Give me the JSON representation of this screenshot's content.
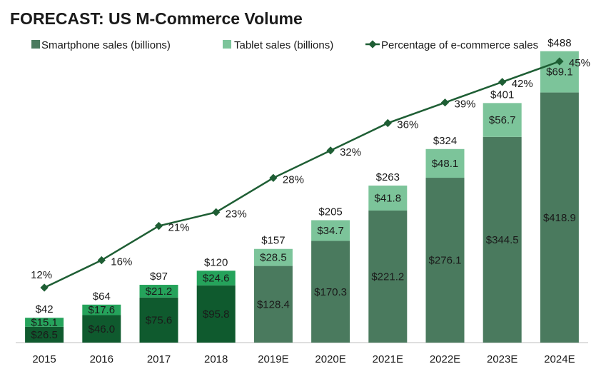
{
  "chart_data": {
    "type": "bar",
    "title": "FORECAST: US M-Commerce Volume",
    "categories": [
      "2015",
      "2016",
      "2017",
      "2018",
      "2019E",
      "2020E",
      "2021E",
      "2022E",
      "2023E",
      "2024E"
    ],
    "series": [
      {
        "name": "Smartphone sales (billions)",
        "values": [
          26.5,
          46.0,
          75.6,
          95.8,
          128.4,
          170.3,
          221.2,
          276.1,
          344.5,
          418.9
        ],
        "labels": [
          "$26.5",
          "$46.0",
          "$75.6",
          "$95.8",
          "$128.4",
          "$170.3",
          "$221.2",
          "$276.1",
          "$344.5",
          "$418.9"
        ]
      },
      {
        "name": "Tablet sales (billions)",
        "values": [
          15.1,
          17.6,
          21.2,
          24.6,
          28.5,
          34.7,
          41.8,
          48.1,
          56.7,
          69.1
        ],
        "labels": [
          "$15.1",
          "$17.6",
          "$21.2",
          "$24.6",
          "$28.5",
          "$34.7",
          "$41.8",
          "$48.1",
          "$56.7",
          "$69.1"
        ]
      },
      {
        "name": "Percentage of e-commerce sales",
        "type": "line",
        "values": [
          12,
          16,
          21,
          23,
          28,
          32,
          36,
          39,
          42,
          45
        ],
        "labels": [
          "12%",
          "16%",
          "21%",
          "23%",
          "28%",
          "32%",
          "36%",
          "39%",
          "42%",
          "45%"
        ]
      }
    ],
    "totals": [
      "$42",
      "$64",
      "$97",
      "$120",
      "$157",
      "$205",
      "$263",
      "$324",
      "$401",
      "$488"
    ],
    "ylim": [
      0,
      520
    ],
    "line_ylim": [
      0,
      50
    ],
    "grid": false,
    "legend_position": "top",
    "colors": {
      "smartphone_actual": "#0f5a2e",
      "tablet_actual": "#25a35b",
      "smartphone_forecast": "#4a7a5e",
      "tablet_forecast": "#7cc49a",
      "line": "#1e5e34",
      "text": "#1a1a1a"
    }
  }
}
